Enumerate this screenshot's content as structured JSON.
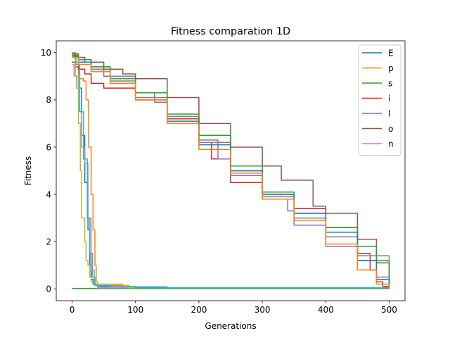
{
  "chart_data": {
    "type": "line",
    "title": "Fitness comparation 1D",
    "xlabel": "Generations",
    "ylabel": "Fitness",
    "xlim": [
      -25,
      525
    ],
    "ylim": [
      -0.5,
      10.5
    ],
    "xticks": [
      0,
      100,
      200,
      300,
      400,
      500
    ],
    "yticks": [
      0,
      2,
      4,
      6,
      8,
      10
    ],
    "grid": false,
    "legend_position": "top-right",
    "series": [
      {
        "name": "E",
        "color": "#1f77b4",
        "points": [
          [
            0,
            9.9
          ],
          [
            5,
            9.6
          ],
          [
            10,
            8.5
          ],
          [
            15,
            6.5
          ],
          [
            20,
            4.5
          ],
          [
            25,
            2.5
          ],
          [
            28,
            1.0
          ],
          [
            30,
            0.4
          ],
          [
            33,
            0.2
          ],
          [
            40,
            0.1
          ],
          [
            80,
            0.08
          ],
          [
            150,
            0.05
          ],
          [
            151,
            0.02
          ],
          [
            500,
            0.0
          ]
        ]
      },
      {
        "name": "p",
        "color": "#ff7f0e",
        "points": [
          [
            0,
            10.0
          ],
          [
            5,
            9.6
          ],
          [
            10,
            8.9
          ],
          [
            18,
            8.8
          ],
          [
            22,
            8.0
          ],
          [
            26,
            6.0
          ],
          [
            30,
            4.0
          ],
          [
            33,
            2.5
          ],
          [
            36,
            1.0
          ],
          [
            38,
            0.3
          ],
          [
            40,
            0.15
          ],
          [
            90,
            0.12
          ],
          [
            91,
            0.02
          ],
          [
            500,
            0.0
          ]
        ]
      },
      {
        "name": "s",
        "color": "#2ca02c",
        "points": [
          [
            0,
            0.02
          ],
          [
            500,
            0.02
          ]
        ]
      },
      {
        "name": "i",
        "color": "#d62728",
        "points": [
          [
            0,
            9.6
          ],
          [
            5,
            9.4
          ],
          [
            10,
            9.3
          ],
          [
            20,
            9.1
          ],
          [
            30,
            8.7
          ],
          [
            50,
            8.5
          ],
          [
            100,
            8.0
          ],
          [
            150,
            7.2
          ],
          [
            200,
            6.2
          ],
          [
            220,
            5.5
          ],
          [
            250,
            4.5
          ],
          [
            300,
            4.0
          ],
          [
            350,
            3.4
          ],
          [
            400,
            2.6
          ],
          [
            450,
            1.5
          ],
          [
            470,
            0.8
          ],
          [
            480,
            0.3
          ],
          [
            490,
            0.1
          ],
          [
            500,
            0.05
          ]
        ]
      },
      {
        "name": "l",
        "color": "#9467bd",
        "points": [
          [
            0,
            9.8
          ],
          [
            10,
            9.6
          ],
          [
            30,
            9.3
          ],
          [
            50,
            9.0
          ],
          [
            100,
            8.3
          ],
          [
            130,
            7.9
          ],
          [
            150,
            7.3
          ],
          [
            200,
            6.3
          ],
          [
            230,
            5.5
          ],
          [
            250,
            4.8
          ],
          [
            300,
            3.8
          ],
          [
            340,
            3.3
          ],
          [
            350,
            2.7
          ],
          [
            400,
            1.8
          ],
          [
            450,
            1.2
          ],
          [
            480,
            0.5
          ],
          [
            500,
            0.3
          ]
        ]
      },
      {
        "name": "o",
        "color": "#8c564b",
        "points": [
          [
            0,
            9.95
          ],
          [
            10,
            9.8
          ],
          [
            20,
            9.6
          ],
          [
            50,
            9.3
          ],
          [
            80,
            9.1
          ],
          [
            100,
            8.9
          ],
          [
            150,
            8.1
          ],
          [
            200,
            7.0
          ],
          [
            250,
            6.0
          ],
          [
            300,
            5.2
          ],
          [
            330,
            4.6
          ],
          [
            380,
            3.5
          ],
          [
            400,
            3.2
          ],
          [
            450,
            2.1
          ],
          [
            480,
            1.1
          ],
          [
            500,
            0.5
          ]
        ]
      },
      {
        "name": "n",
        "color": "#e377c2",
        "points": [
          [
            0,
            9.5
          ],
          [
            3,
            9.0
          ],
          [
            7,
            8.5
          ],
          [
            10,
            7.5
          ],
          [
            15,
            6.0
          ],
          [
            20,
            5.3
          ],
          [
            25,
            3.0
          ],
          [
            30,
            0.8
          ],
          [
            35,
            0.2
          ],
          [
            40,
            0.05
          ],
          [
            500,
            0.01
          ]
        ]
      },
      {
        "name": "",
        "color": "#7f7f7f",
        "points": [
          [
            0,
            9.9
          ],
          [
            10,
            9.7
          ],
          [
            30,
            9.4
          ],
          [
            60,
            8.8
          ],
          [
            100,
            8.1
          ],
          [
            150,
            7.3
          ],
          [
            200,
            6.2
          ],
          [
            250,
            5.0
          ],
          [
            300,
            3.9
          ],
          [
            350,
            3.0
          ],
          [
            400,
            2.2
          ],
          [
            450,
            1.4
          ],
          [
            500,
            0.1
          ]
        ]
      },
      {
        "name": "",
        "color": "#bcbd22",
        "points": [
          [
            0,
            9.8
          ],
          [
            5,
            9.0
          ],
          [
            10,
            7.0
          ],
          [
            13,
            5.0
          ],
          [
            15,
            3.0
          ],
          [
            18,
            3.0
          ],
          [
            20,
            2.0
          ],
          [
            22,
            1.2
          ],
          [
            25,
            1.0
          ],
          [
            28,
            0.5
          ],
          [
            30,
            0.3
          ],
          [
            40,
            0.2
          ],
          [
            80,
            0.15
          ],
          [
            90,
            0.05
          ],
          [
            500,
            0.02
          ]
        ]
      },
      {
        "name": "",
        "color": "#17becf",
        "points": [
          [
            0,
            9.85
          ],
          [
            6,
            9.5
          ],
          [
            12,
            7.5
          ],
          [
            18,
            5.5
          ],
          [
            24,
            3.0
          ],
          [
            28,
            1.5
          ],
          [
            32,
            0.5
          ],
          [
            36,
            0.15
          ],
          [
            60,
            0.1
          ],
          [
            100,
            0.05
          ],
          [
            500,
            0.0
          ]
        ]
      },
      {
        "name": "",
        "color": "#2ca02c",
        "points": [
          [
            0,
            9.9
          ],
          [
            10,
            9.7
          ],
          [
            30,
            9.4
          ],
          [
            60,
            8.9
          ],
          [
            100,
            8.3
          ],
          [
            150,
            7.4
          ],
          [
            200,
            6.5
          ],
          [
            250,
            5.2
          ],
          [
            300,
            4.1
          ],
          [
            350,
            3.2
          ],
          [
            400,
            2.6
          ],
          [
            450,
            1.8
          ],
          [
            480,
            1.2
          ],
          [
            500,
            0.2
          ]
        ]
      },
      {
        "name": "",
        "color": "#1f77b4",
        "points": [
          [
            0,
            9.85
          ],
          [
            10,
            9.6
          ],
          [
            30,
            9.2
          ],
          [
            60,
            8.7
          ],
          [
            100,
            8.0
          ],
          [
            150,
            7.1
          ],
          [
            200,
            6.1
          ],
          [
            250,
            5.0
          ],
          [
            300,
            4.0
          ],
          [
            350,
            3.2
          ],
          [
            400,
            2.4
          ],
          [
            450,
            1.2
          ],
          [
            480,
            0.4
          ],
          [
            500,
            0.1
          ]
        ]
      },
      {
        "name": "",
        "color": "#ff7f0e",
        "points": [
          [
            0,
            9.8
          ],
          [
            10,
            9.5
          ],
          [
            30,
            9.2
          ],
          [
            60,
            8.7
          ],
          [
            100,
            8.0
          ],
          [
            150,
            7.0
          ],
          [
            200,
            5.9
          ],
          [
            250,
            4.9
          ],
          [
            300,
            3.8
          ],
          [
            350,
            2.9
          ],
          [
            400,
            1.9
          ],
          [
            450,
            0.8
          ],
          [
            480,
            0.2
          ],
          [
            500,
            0.0
          ]
        ]
      }
    ]
  }
}
